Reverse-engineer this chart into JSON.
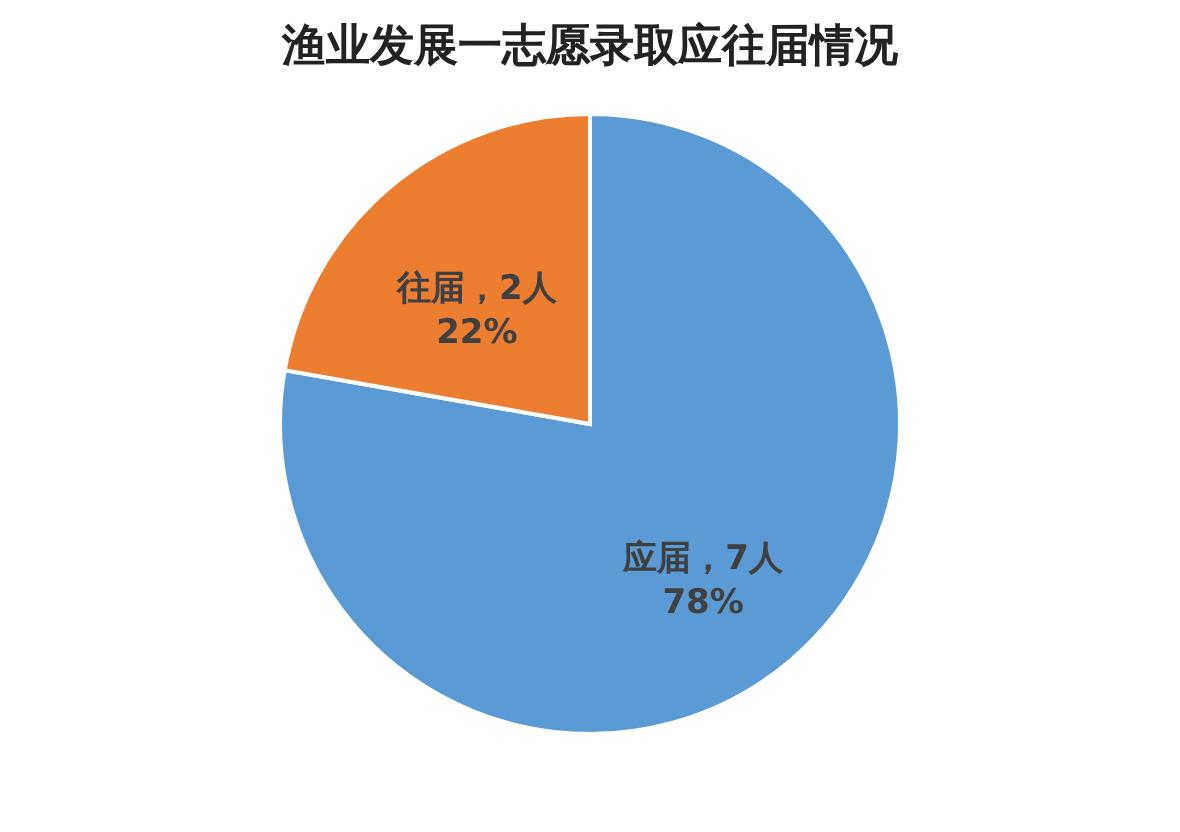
{
  "chart_data": {
    "type": "pie",
    "title": "渔业发展一志愿录取应往届情况",
    "categories": [
      "应届",
      "往届"
    ],
    "values": [
      7,
      2
    ],
    "colors": [
      "#5b9bd5",
      "#ed7d31"
    ],
    "value_labels": [
      "，7人\n78%",
      "，2人\n22%"
    ],
    "legend": false
  }
}
